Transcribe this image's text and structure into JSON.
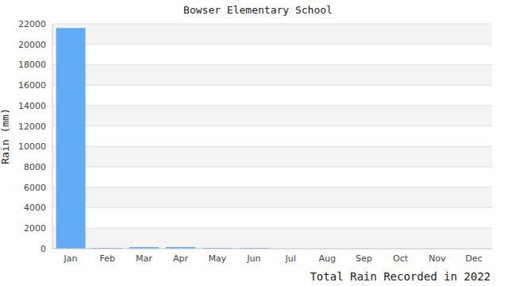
{
  "chart_data": {
    "type": "bar",
    "title": "Bowser Elementary School",
    "y_label": "Rain (mm)",
    "x_label": "Total Rain Recorded in 2022",
    "categories": [
      "Jan",
      "Feb",
      "Mar",
      "Apr",
      "May",
      "Jun",
      "Jul",
      "Aug",
      "Sep",
      "Oct",
      "Nov",
      "Dec"
    ],
    "values": [
      21600,
      80,
      150,
      150,
      80,
      80,
      0,
      0,
      0,
      0,
      0,
      0
    ],
    "color": "#62abf7",
    "ylim": [
      0,
      22000
    ],
    "yticks": [
      0,
      2000,
      4000,
      6000,
      8000,
      10000,
      12000,
      14000,
      16000,
      18000,
      20000,
      22000
    ],
    "grid": true
  }
}
